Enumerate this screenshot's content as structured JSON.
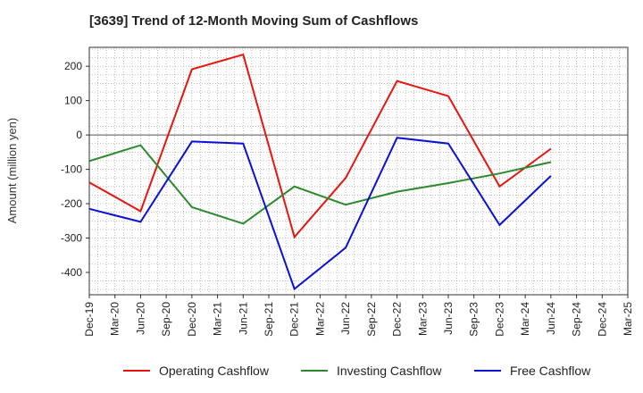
{
  "chart_data": {
    "type": "line",
    "title": "[3639]  Trend of 12-Month Moving Sum of Cashflows",
    "ylabel": "Amount (million yen)",
    "xlabel": "",
    "categories": [
      "Dec-19",
      "Mar-20",
      "Jun-20",
      "Sep-20",
      "Dec-20",
      "Mar-21",
      "Jun-21",
      "Sep-21",
      "Dec-21",
      "Mar-22",
      "Jun-22",
      "Sep-22",
      "Dec-22",
      "Mar-23",
      "Jun-23",
      "Sep-23",
      "Dec-23",
      "Mar-24",
      "Jun-24",
      "Sep-24",
      "Dec-24",
      "Mar-25"
    ],
    "ylim": [
      -465,
      255
    ],
    "yticks": [
      200,
      100,
      0,
      -100,
      -200,
      -300,
      -400
    ],
    "grid": true,
    "legend_position": "bottom",
    "series": [
      {
        "name": "Operating Cashflow",
        "color": "#e8150e",
        "points": [
          [
            "Dec-19",
            -138
          ],
          [
            "Jun-20",
            -222
          ],
          [
            "Dec-20",
            191
          ],
          [
            "Jun-21",
            234
          ],
          [
            "Dec-21",
            -297
          ],
          [
            "Jun-22",
            -125
          ],
          [
            "Dec-22",
            157
          ],
          [
            "Jun-23",
            113
          ],
          [
            "Dec-23",
            -150
          ],
          [
            "Jun-24",
            -40
          ]
        ]
      },
      {
        "name": "Investing Cashflow",
        "color": "#2b8a2b",
        "points": [
          [
            "Dec-19",
            -76
          ],
          [
            "Jun-20",
            -30
          ],
          [
            "Dec-20",
            -210
          ],
          [
            "Jun-21",
            -258
          ],
          [
            "Dec-21",
            -150
          ],
          [
            "Jun-22",
            -203
          ],
          [
            "Dec-22",
            -165
          ],
          [
            "Jun-23",
            -140
          ],
          [
            "Dec-23",
            -112
          ],
          [
            "Jun-24",
            -79
          ]
        ]
      },
      {
        "name": "Free Cashflow",
        "color": "#0b10d6",
        "points": [
          [
            "Dec-19",
            -215
          ],
          [
            "Jun-20",
            -253
          ],
          [
            "Dec-20",
            -19
          ],
          [
            "Jun-21",
            -25
          ],
          [
            "Dec-21",
            -448
          ],
          [
            "Jun-22",
            -328
          ],
          [
            "Dec-22",
            -8
          ],
          [
            "Jun-23",
            -25
          ],
          [
            "Dec-23",
            -262
          ],
          [
            "Jun-24",
            -119
          ]
        ]
      }
    ]
  }
}
